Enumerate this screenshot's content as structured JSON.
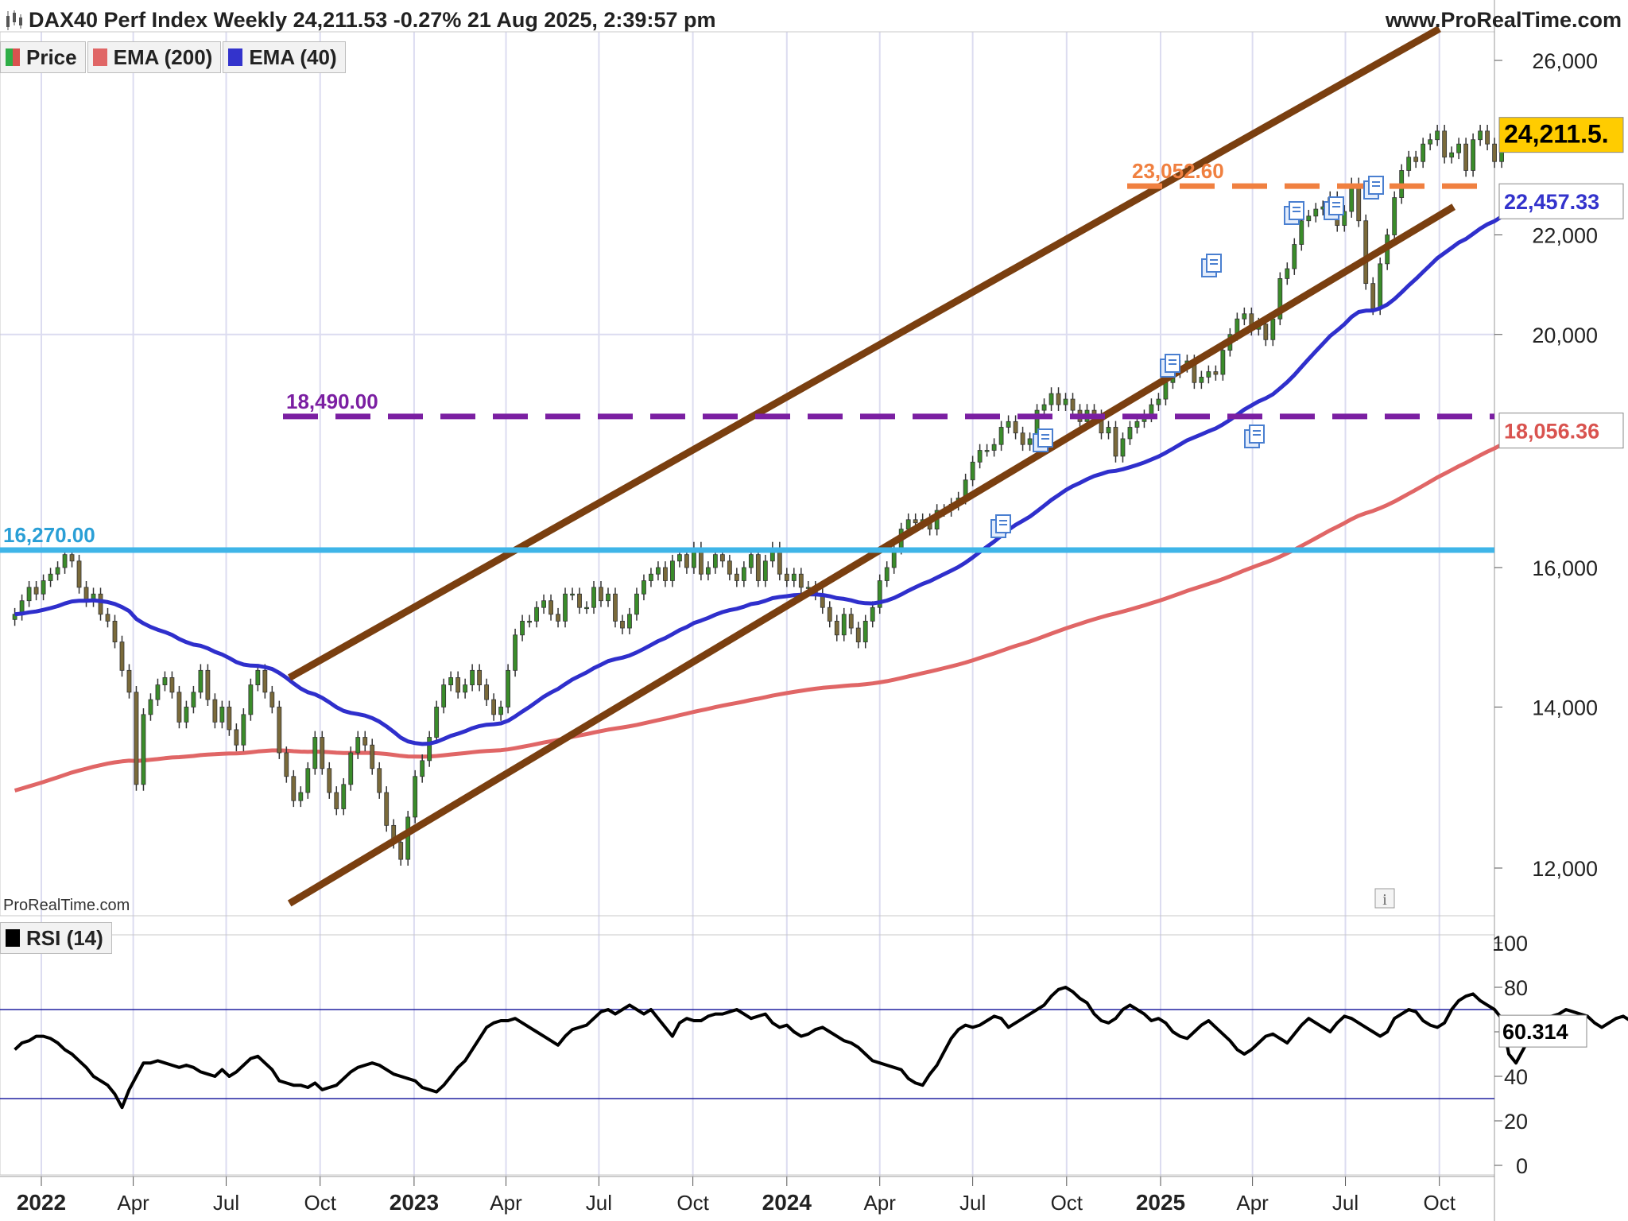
{
  "header": {
    "title": "DAX40 Perf Index Weekly 24,211.53 -0.27% 21 Aug 2025, 2:39:57 pm",
    "site": "www.ProRealTime.com"
  },
  "legend": [
    {
      "label": "Price",
      "color": "#2fae47",
      "color2": "#d9534f"
    },
    {
      "label": "EMA (200)",
      "color": "#e06666"
    },
    {
      "label": "EMA (40)",
      "color": "#3333cc"
    }
  ],
  "watermark": "ProRealTime.com",
  "rsi_legend": {
    "label": "RSI (14)",
    "color": "#000000"
  },
  "colors": {
    "up": "#3a8c2a",
    "down": "#7a6a3a",
    "ema200": "#e06666",
    "ema40": "#2f2fcc",
    "channel": "#7a3f10",
    "purple": "#7b1fa2",
    "orange": "#f08040",
    "cyan": "#3fb5e8"
  },
  "chart_data": [
    {
      "type": "candlestick",
      "x_axis": {
        "labels": [
          "2022",
          "Apr",
          "Jul",
          "Oct",
          "2023",
          "Apr",
          "Jul",
          "Oct",
          "2024",
          "Apr",
          "Jul",
          "Oct",
          "2025",
          "Apr",
          "Jul",
          "Oct"
        ]
      },
      "y_axis": {
        "scale": "log",
        "ticks": [
          12000,
          14000,
          16000,
          20000,
          22000,
          26000
        ],
        "tick_labels": [
          "12,000",
          "14,000",
          "16,000",
          "20,000",
          "22,000",
          "26,000"
        ],
        "range": [
          11400,
          27100
        ]
      },
      "price_tag": "24,211.5.",
      "ema40_tag": "22,457.33",
      "ema200_tag": "18,056.36",
      "levels": [
        {
          "value": 18490,
          "label": "18,490.00",
          "style": "dashed",
          "color": "#7b1fa2"
        },
        {
          "value": 23052.6,
          "label": "23,052.60",
          "style": "dashed",
          "color": "#f08040"
        },
        {
          "value": 16270,
          "label": "16,270.00",
          "style": "solid",
          "color": "#3fb5e8"
        }
      ],
      "channel": [
        {
          "name": "upper",
          "from": [
            "2022-09-01",
            14400
          ],
          "to": [
            "2025-10-01",
            26800
          ]
        },
        {
          "name": "lower",
          "from": [
            "2022-09-01",
            11600
          ],
          "to": [
            "2025-10-15",
            22600
          ]
        }
      ],
      "weekly_close": [
        15300,
        15500,
        15700,
        15600,
        15800,
        15900,
        16000,
        16200,
        16100,
        15700,
        15500,
        15600,
        15300,
        15200,
        14900,
        14500,
        14200,
        13000,
        13900,
        14100,
        14300,
        14400,
        14200,
        13800,
        14000,
        14200,
        14500,
        14100,
        13800,
        14000,
        13700,
        13500,
        13900,
        14300,
        14500,
        14200,
        14000,
        13400,
        13100,
        12800,
        12900,
        13200,
        13600,
        13200,
        12900,
        12700,
        13000,
        13400,
        13600,
        13500,
        13200,
        12900,
        12500,
        12300,
        12100,
        12600,
        13100,
        13300,
        13600,
        14000,
        14300,
        14400,
        14200,
        14300,
        14500,
        14300,
        14100,
        13900,
        14000,
        14500,
        15000,
        15200,
        15200,
        15400,
        15500,
        15300,
        15200,
        15600,
        15600,
        15400,
        15400,
        15700,
        15500,
        15600,
        15200,
        15100,
        15300,
        15600,
        15800,
        15900,
        16000,
        15800,
        16100,
        16200,
        16000,
        16300,
        15900,
        16000,
        16200,
        16100,
        15900,
        15800,
        16000,
        16200,
        15800,
        16100,
        16300,
        15900,
        15800,
        15900,
        15700,
        15700,
        15600,
        15400,
        15200,
        15000,
        15300,
        15100,
        14900,
        15200,
        15400,
        15800,
        16000,
        16300,
        16600,
        16750,
        16700,
        16750,
        16600,
        16900,
        16900,
        17000,
        17100,
        17400,
        17700,
        17900,
        17900,
        18000,
        18300,
        18400,
        18200,
        18000,
        18100,
        18600,
        18700,
        18900,
        18700,
        18800,
        18600,
        18400,
        18600,
        18500,
        18200,
        18300,
        17800,
        18100,
        18300,
        18400,
        18500,
        18700,
        18800,
        19100,
        19300,
        19400,
        19500,
        19100,
        19200,
        19300,
        19250,
        19700,
        20000,
        20300,
        20400,
        20100,
        20200,
        19900,
        20300,
        21100,
        21300,
        21800,
        22300,
        22400,
        22550,
        22600,
        22800,
        22200,
        22500,
        23100,
        22300,
        21000,
        20500,
        21400,
        22000,
        22800,
        23400,
        23700,
        23600,
        24000,
        24100,
        24300,
        23700,
        23800,
        24000,
        23400,
        24100,
        24300,
        24000,
        23600,
        24300,
        24200,
        24250,
        24180,
        24211
      ]
    },
    {
      "type": "line",
      "title": "RSI (14)",
      "y_axis": {
        "ticks": [
          0,
          20,
          40,
          60,
          80,
          100
        ],
        "range": [
          0,
          100
        ]
      },
      "reference_lines": [
        70,
        30
      ],
      "value_tag": "60.314",
      "values": [
        52,
        55,
        56,
        58,
        58,
        57,
        55,
        52,
        50,
        47,
        44,
        40,
        38,
        36,
        32,
        26,
        34,
        40,
        46,
        46,
        47,
        46,
        45,
        44,
        45,
        44,
        42,
        41,
        40,
        43,
        40,
        42,
        45,
        48,
        49,
        46,
        43,
        38,
        37,
        36,
        36,
        35,
        37,
        34,
        35,
        36,
        39,
        42,
        44,
        45,
        46,
        45,
        43,
        41,
        40,
        39,
        38,
        35,
        34,
        33,
        36,
        40,
        44,
        47,
        52,
        57,
        62,
        64,
        65,
        65,
        66,
        64,
        62,
        60,
        58,
        56,
        54,
        58,
        61,
        62,
        63,
        66,
        69,
        70,
        68,
        70,
        72,
        70,
        68,
        70,
        66,
        62,
        58,
        64,
        66,
        65,
        65,
        67,
        68,
        68,
        69,
        70,
        68,
        66,
        67,
        68,
        64,
        62,
        63,
        60,
        58,
        59,
        61,
        62,
        60,
        58,
        56,
        55,
        53,
        50,
        47,
        46,
        45,
        44,
        43,
        39,
        37,
        36,
        41,
        45,
        51,
        57,
        61,
        63,
        62,
        63,
        65,
        67,
        66,
        62,
        64,
        66,
        68,
        70,
        72,
        76,
        79,
        80,
        78,
        75,
        73,
        68,
        65,
        64,
        66,
        70,
        72,
        70,
        68,
        65,
        66,
        64,
        60,
        58,
        57,
        60,
        63,
        65,
        62,
        59,
        56,
        52,
        50,
        52,
        55,
        58,
        59,
        57,
        55,
        59,
        63,
        66,
        64,
        62,
        60,
        64,
        67,
        66,
        64,
        62,
        60,
        58,
        60,
        66,
        68,
        70,
        69,
        65,
        63,
        62,
        64,
        70,
        74,
        76,
        77,
        74,
        72,
        70,
        66,
        50,
        46,
        52,
        58,
        63,
        66,
        67,
        68,
        70,
        69,
        68,
        67,
        64,
        62,
        64,
        66,
        67,
        65,
        62,
        56,
        60,
        62,
        61,
        60
      ]
    }
  ]
}
